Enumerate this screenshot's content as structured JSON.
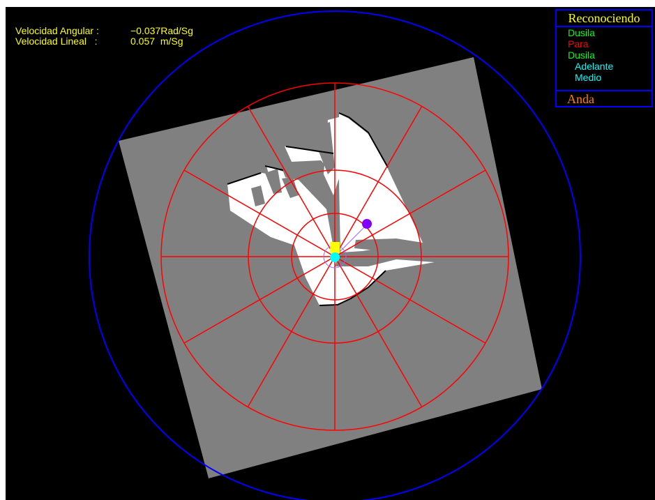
{
  "readouts": {
    "angular_label": "Velocidad Angular :",
    "angular_value": "−0.037Rad/Sg",
    "linear_label": "Velocidad Lineal   :",
    "linear_value": "0.057  m/Sg"
  },
  "panel": {
    "title": "Reconociendo",
    "items": [
      {
        "label": "Dusila",
        "color": "#00ff00"
      },
      {
        "label": "Para",
        "color": "#ff0000"
      },
      {
        "label": "Dusila",
        "color": "#00ff00"
      },
      {
        "label": "Adelante",
        "color": "#00ffff"
      },
      {
        "label": "Medio",
        "color": "#00ffff"
      }
    ],
    "status": "Anda"
  },
  "colors": {
    "background": "#000000",
    "map_unknown": "#808080",
    "map_free": "#ffffff",
    "radar_grid": "#ff0000",
    "outer_circle": "#0000ff",
    "readout_text": "#ffff00",
    "panel_border": "#0000ff",
    "robot": "#ffff00",
    "sensor": "#00ffff",
    "target": "#8000ff"
  }
}
